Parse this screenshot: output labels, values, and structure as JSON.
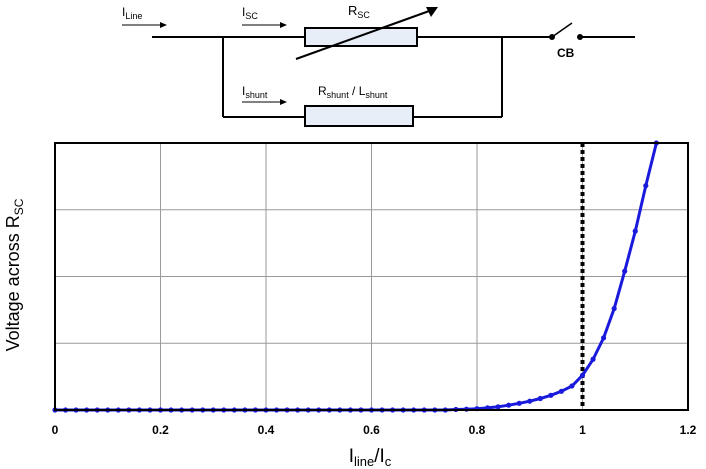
{
  "circuit": {
    "i_line": {
      "main": "I",
      "sub": "Line"
    },
    "i_sc": {
      "main": "I",
      "sub": "SC"
    },
    "r_sc": {
      "main": "R",
      "sub": "SC"
    },
    "i_shunt": {
      "main": "I",
      "sub": "shunt"
    },
    "r_shunt": {
      "main1": "R",
      "sub1": "shunt",
      "sep": " / ",
      "main2": "L",
      "sub2": "shunt"
    },
    "cb": "CB"
  },
  "chart_data": {
    "type": "line",
    "xlabel": {
      "main": "I",
      "sub1": "line",
      "sep": "/I",
      "sub2": "c"
    },
    "ylabel": {
      "text": "Voltage across R",
      "sub": "SC"
    },
    "xlim": [
      0,
      1.2
    ],
    "ylim": [
      0,
      1
    ],
    "x_ticks": [
      "0",
      "0.2",
      "0.4",
      "0.6",
      "0.8",
      "1",
      "1.2"
    ],
    "grid": true,
    "vline_x": 1.0,
    "series": [
      {
        "color": "#1a1adc",
        "points": [
          [
            0,
            0
          ],
          [
            0.02,
            0
          ],
          [
            0.04,
            0
          ],
          [
            0.06,
            0
          ],
          [
            0.08,
            0
          ],
          [
            0.1,
            0
          ],
          [
            0.12,
            0
          ],
          [
            0.14,
            0
          ],
          [
            0.16,
            0
          ],
          [
            0.18,
            0
          ],
          [
            0.2,
            0
          ],
          [
            0.22,
            0
          ],
          [
            0.24,
            0
          ],
          [
            0.26,
            0
          ],
          [
            0.28,
            0
          ],
          [
            0.3,
            0
          ],
          [
            0.32,
            0
          ],
          [
            0.34,
            0
          ],
          [
            0.36,
            0
          ],
          [
            0.38,
            0
          ],
          [
            0.4,
            0
          ],
          [
            0.42,
            0
          ],
          [
            0.44,
            0
          ],
          [
            0.46,
            0
          ],
          [
            0.48,
            0
          ],
          [
            0.5,
            0
          ],
          [
            0.52,
            0
          ],
          [
            0.54,
            0
          ],
          [
            0.56,
            0
          ],
          [
            0.58,
            0
          ],
          [
            0.6,
            0
          ],
          [
            0.62,
            0
          ],
          [
            0.64,
            0
          ],
          [
            0.66,
            0
          ],
          [
            0.68,
            0
          ],
          [
            0.7,
            0
          ],
          [
            0.72,
            0
          ],
          [
            0.74,
            0
          ],
          [
            0.76,
            0.002
          ],
          [
            0.78,
            0.003
          ],
          [
            0.8,
            0.005
          ],
          [
            0.82,
            0.008
          ],
          [
            0.84,
            0.012
          ],
          [
            0.86,
            0.018
          ],
          [
            0.88,
            0.025
          ],
          [
            0.9,
            0.033
          ],
          [
            0.92,
            0.043
          ],
          [
            0.94,
            0.055
          ],
          [
            0.96,
            0.07
          ],
          [
            0.98,
            0.09
          ],
          [
            1.0,
            0.13
          ],
          [
            1.02,
            0.19
          ],
          [
            1.04,
            0.27
          ],
          [
            1.06,
            0.38
          ],
          [
            1.08,
            0.52
          ],
          [
            1.1,
            0.67
          ],
          [
            1.12,
            0.84
          ],
          [
            1.14,
            1.0
          ]
        ]
      }
    ]
  }
}
